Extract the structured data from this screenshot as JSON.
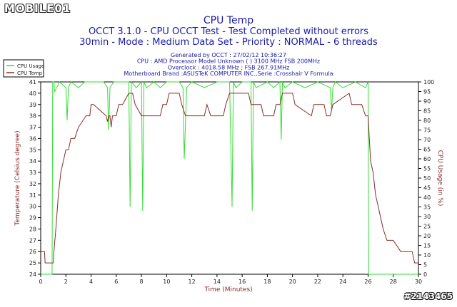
{
  "watermark": {
    "site_logo": "MOBILE01",
    "post_id": "#2143465"
  },
  "chart_data": {
    "type": "line",
    "title": "CPU Temp",
    "subtitle": [
      "OCCT 3.1.0 - CPU OCCT Test - Test Completed without errors",
      "30min - Mode : Medium Data Set - Priority : NORMAL - 6 threads"
    ],
    "info_lines": [
      "Generated by OCCT : 27/02/12 10:36:27",
      "CPU : AMD Processor Model Unknown (  ) 3100 MHz FSB 200MHz",
      "Overclock : 4018.58 MHz ; FSB 267.91MHz",
      "Motherboard Brand :ASUSTeK COMPUTER INC.,Serie :Crosshair V Formula"
    ],
    "xlabel": "Time (Minutes)",
    "ylabel": "Temperature (Celsius degree)",
    "y2label": "CPU Usage (in %)",
    "xlim": [
      0,
      30
    ],
    "ylim": [
      24,
      41
    ],
    "y2lim": [
      0,
      100
    ],
    "x_ticks": [
      0,
      2,
      4,
      6,
      8,
      10,
      12,
      14,
      16,
      18,
      20,
      22,
      24,
      26,
      28,
      30
    ],
    "y_ticks": [
      24,
      25,
      26,
      27,
      28,
      29,
      30,
      31,
      32,
      33,
      34,
      35,
      36,
      37,
      38,
      39,
      40,
      41
    ],
    "y2_ticks": [
      0,
      5,
      10,
      15,
      20,
      25,
      30,
      35,
      40,
      45,
      50,
      55,
      60,
      65,
      70,
      75,
      80,
      85,
      90,
      95,
      100
    ],
    "grid": false,
    "legend_position": "top-left",
    "series": [
      {
        "name": "CPU Usage",
        "axis": "right",
        "color": "#33dd33",
        "x": [
          0,
          0.9,
          0.95,
          1.05,
          1.1,
          1.5,
          2.0,
          2.1,
          2.2,
          2.4,
          3.0,
          3.5,
          4.0,
          5.0,
          5.3,
          5.4,
          5.5,
          5.8,
          6.0,
          7.0,
          7.1,
          7.2,
          7.6,
          8.0,
          8.1,
          8.2,
          8.4,
          9.0,
          9.5,
          10.0,
          11.0,
          11.3,
          11.4,
          11.6,
          12.0,
          13.0,
          14.0,
          15.0,
          15.2,
          15.3,
          15.5,
          16.0,
          16.7,
          16.8,
          16.9,
          17.1,
          18.0,
          18.5,
          19.0,
          19.1,
          19.2,
          19.4,
          20.0,
          21.0,
          22.0,
          23.0,
          23.1,
          23.2,
          23.4,
          24.0,
          25.0,
          25.8,
          26.0,
          26.05,
          26.1,
          27,
          28,
          29,
          30
        ],
        "values": [
          0,
          0,
          100,
          100,
          95,
          100,
          97,
          80,
          97,
          100,
          97,
          100,
          100,
          100,
          97,
          75,
          97,
          100,
          100,
          100,
          35,
          100,
          97,
          100,
          33,
          100,
          97,
          100,
          97,
          100,
          100,
          97,
          60,
          97,
          100,
          97,
          100,
          100,
          35,
          100,
          97,
          100,
          100,
          33,
          100,
          97,
          100,
          97,
          100,
          70,
          100,
          97,
          100,
          97,
          100,
          97,
          85,
          97,
          100,
          97,
          100,
          97,
          100,
          0,
          0,
          0,
          0,
          0,
          0
        ]
      },
      {
        "name": "CPU Temp",
        "axis": "left",
        "color": "#8b2a2a",
        "x": [
          0,
          0.3,
          0.35,
          1.0,
          1.05,
          1.2,
          1.4,
          1.6,
          1.8,
          2.0,
          2.2,
          2.4,
          2.7,
          3.0,
          3.3,
          3.6,
          3.9,
          4.0,
          4.2,
          5.2,
          5.3,
          5.4,
          5.5,
          5.6,
          5.7,
          6.0,
          6.2,
          6.5,
          7.0,
          7.3,
          7.5,
          8.0,
          8.2,
          9.5,
          9.7,
          10.0,
          10.2,
          11.0,
          11.2,
          11.5,
          11.7,
          13.0,
          13.2,
          13.5,
          13.7,
          14.5,
          14.7,
          15.0,
          15.2,
          16.5,
          16.7,
          17.5,
          17.7,
          18.5,
          18.7,
          19.0,
          19.2,
          20.0,
          20.2,
          21.5,
          21.7,
          22.5,
          22.7,
          23.0,
          23.2,
          24.5,
          24.7,
          25.5,
          25.8,
          26.0,
          26.1,
          26.2,
          26.4,
          26.6,
          26.8,
          27.0,
          27.2,
          27.5,
          27.8,
          28.0,
          28.6,
          28.8,
          29.5,
          29.7,
          30.0
        ],
        "values": [
          26,
          26,
          25,
          25,
          26,
          28,
          31,
          33,
          34,
          35,
          35,
          36,
          36,
          37,
          37.5,
          38,
          38,
          39,
          39,
          38,
          37.5,
          38,
          38,
          37,
          38,
          38,
          39,
          39,
          40,
          40,
          39,
          38,
          38,
          38,
          39,
          39,
          40,
          40,
          39,
          38,
          38,
          38,
          39,
          38,
          38,
          38,
          39,
          40,
          40,
          40,
          39,
          39,
          38,
          38,
          39,
          39,
          40,
          40,
          39,
          38,
          39,
          39,
          38,
          38,
          39,
          40,
          39,
          39,
          38,
          38,
          36,
          34,
          33,
          31,
          30,
          29,
          28,
          27,
          27,
          27,
          26,
          26,
          26,
          25,
          25
        ]
      }
    ]
  }
}
